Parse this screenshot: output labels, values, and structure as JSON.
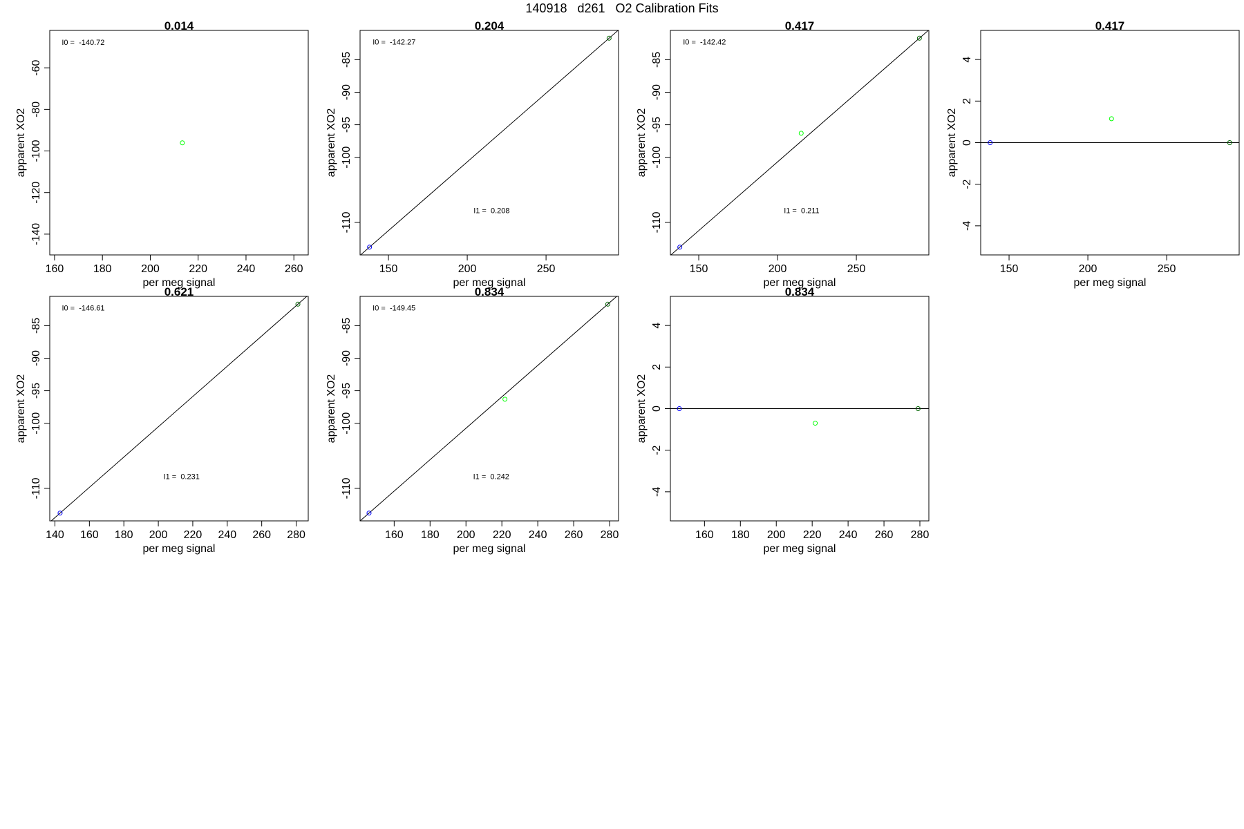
{
  "page": {
    "title": "140918   d261   O2 Calibration Fits"
  },
  "colors": {
    "frame": "#000000",
    "fit_line": "#000000",
    "blue_point": "#0000ff",
    "green_point": "#00ff00",
    "dark_green_point": "#006400"
  },
  "chart_data": [
    {
      "type": "scatter",
      "title": "0.014",
      "xlabel": "per meg signal",
      "ylabel": "apparent XO2",
      "xlim": [
        158,
        266
      ],
      "ylim": [
        -150,
        -42
      ],
      "xticks": [
        160,
        180,
        200,
        220,
        240,
        260
      ],
      "yticks": [
        -140,
        -120,
        -100,
        -80,
        -60
      ],
      "points": [
        {
          "x": 213.4,
          "y": -96.1,
          "color": "#00ff00"
        }
      ],
      "fit": null,
      "annotations": [
        {
          "text": "I0 =  -140.72",
          "x": 163,
          "y": -49
        }
      ]
    },
    {
      "type": "scatter",
      "title": "0.204",
      "xlabel": "per meg signal",
      "ylabel": "apparent XO2",
      "xlim": [
        132,
        296
      ],
      "ylim": [
        -115.0,
        -80.5
      ],
      "xticks": [
        150,
        200,
        250
      ],
      "yticks": [
        -110,
        -100,
        -95,
        -90,
        -85
      ],
      "points": [
        {
          "x": 138,
          "y": -113.8,
          "color": "#0000ff"
        },
        {
          "x": 290,
          "y": -81.7,
          "color": "#006400"
        }
      ],
      "fit": {
        "type": "line",
        "points": [
          [
            138,
            -113.8
          ],
          [
            290,
            -81.7
          ]
        ]
      },
      "annotations": [
        {
          "text": "I0 =  -142.27",
          "x": 140,
          "y": -82.7
        },
        {
          "text": "I1 =  0.208",
          "x": 204,
          "y": -108.6
        }
      ]
    },
    {
      "type": "scatter",
      "title": "0.417",
      "xlabel": "per meg signal",
      "ylabel": "apparent XO2",
      "xlim": [
        132,
        296
      ],
      "ylim": [
        -115.0,
        -80.5
      ],
      "xticks": [
        150,
        200,
        250
      ],
      "yticks": [
        -110,
        -100,
        -95,
        -90,
        -85
      ],
      "points": [
        {
          "x": 138,
          "y": -113.8,
          "color": "#0000ff"
        },
        {
          "x": 215,
          "y": -96.3,
          "color": "#00ff00"
        },
        {
          "x": 290,
          "y": -81.7,
          "color": "#006400"
        }
      ],
      "fit": {
        "type": "line",
        "points": [
          [
            138,
            -113.8
          ],
          [
            290,
            -81.7
          ]
        ]
      },
      "annotations": [
        {
          "text": "I0 =  -142.42",
          "x": 140,
          "y": -82.7
        },
        {
          "text": "I1 =  0.211",
          "x": 204,
          "y": -108.6
        }
      ]
    },
    {
      "type": "scatter",
      "title": "0.417",
      "xlabel": "per meg signal",
      "ylabel": "apparent XO2",
      "xlim": [
        132,
        296
      ],
      "ylim": [
        -5.4,
        5.4
      ],
      "xticks": [
        150,
        200,
        250
      ],
      "yticks": [
        -4,
        -2,
        0,
        2,
        4
      ],
      "points": [
        {
          "x": 138,
          "y": 0,
          "color": "#0000ff"
        },
        {
          "x": 215,
          "y": 1.15,
          "color": "#00ff00"
        },
        {
          "x": 290,
          "y": 0,
          "color": "#006400"
        }
      ],
      "fit": {
        "type": "hline",
        "y": 0
      },
      "annotations": []
    },
    {
      "type": "scatter",
      "title": "0.621",
      "xlabel": "per meg signal",
      "ylabel": "apparent XO2",
      "xlim": [
        137,
        287
      ],
      "ylim": [
        -115.0,
        -80.5
      ],
      "xticks": [
        140,
        160,
        180,
        200,
        220,
        240,
        260,
        280
      ],
      "yticks": [
        -110,
        -100,
        -95,
        -90,
        -85
      ],
      "points": [
        {
          "x": 143,
          "y": -113.8,
          "color": "#0000ff"
        },
        {
          "x": 281,
          "y": -81.7,
          "color": "#006400"
        }
      ],
      "fit": {
        "type": "line",
        "points": [
          [
            143,
            -113.8
          ],
          [
            281,
            -81.7
          ]
        ]
      },
      "annotations": [
        {
          "text": "I0 =  -146.61",
          "x": 144,
          "y": -82.7
        },
        {
          "text": "I1 =  0.231",
          "x": 203,
          "y": -108.6
        }
      ]
    },
    {
      "type": "scatter",
      "title": "0.834",
      "xlabel": "per meg signal",
      "ylabel": "apparent XO2",
      "xlim": [
        141,
        285
      ],
      "ylim": [
        -115.0,
        -80.5
      ],
      "xticks": [
        160,
        180,
        200,
        220,
        240,
        260,
        280
      ],
      "yticks": [
        -110,
        -100,
        -95,
        -90,
        -85
      ],
      "points": [
        {
          "x": 146,
          "y": -113.8,
          "color": "#0000ff"
        },
        {
          "x": 221.7,
          "y": -96.3,
          "color": "#00ff00"
        },
        {
          "x": 279,
          "y": -81.7,
          "color": "#006400"
        }
      ],
      "fit": {
        "type": "line",
        "points": [
          [
            146,
            -113.8
          ],
          [
            279,
            -81.7
          ]
        ]
      },
      "annotations": [
        {
          "text": "I0 =  -149.45",
          "x": 148,
          "y": -82.7
        },
        {
          "text": "I1 =  0.242",
          "x": 204,
          "y": -108.6
        }
      ]
    },
    {
      "type": "scatter",
      "title": "0.834",
      "xlabel": "per meg signal",
      "ylabel": "apparent XO2",
      "xlim": [
        141,
        285
      ],
      "ylim": [
        -5.4,
        5.4
      ],
      "xticks": [
        160,
        180,
        200,
        220,
        240,
        260,
        280
      ],
      "yticks": [
        -4,
        -2,
        0,
        2,
        4
      ],
      "points": [
        {
          "x": 146,
          "y": 0,
          "color": "#0000ff"
        },
        {
          "x": 221.7,
          "y": -0.7,
          "color": "#00ff00"
        },
        {
          "x": 279,
          "y": 0,
          "color": "#006400"
        }
      ],
      "fit": {
        "type": "hline",
        "y": 0
      },
      "annotations": []
    }
  ]
}
